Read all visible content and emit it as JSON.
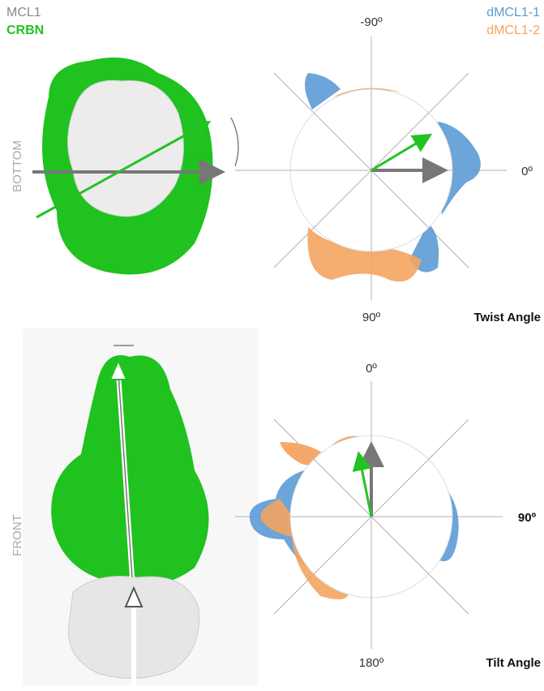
{
  "legend": {
    "mcl1": "MCL1",
    "crbn": "CRBN",
    "series1": "dMCL1-1",
    "series2": "dMCL1-2"
  },
  "top_panel": {
    "view_label": "BOTTOM",
    "angle_labels": {
      "top": "-90º",
      "right": "0º",
      "bottom": "90º"
    },
    "axis_title": "Twist Angle"
  },
  "bottom_panel": {
    "view_label": "FRONT",
    "angle_labels": {
      "top": "0º",
      "right": "90º",
      "bottom": "180º"
    },
    "axis_title": "Tilt Angle"
  }
}
